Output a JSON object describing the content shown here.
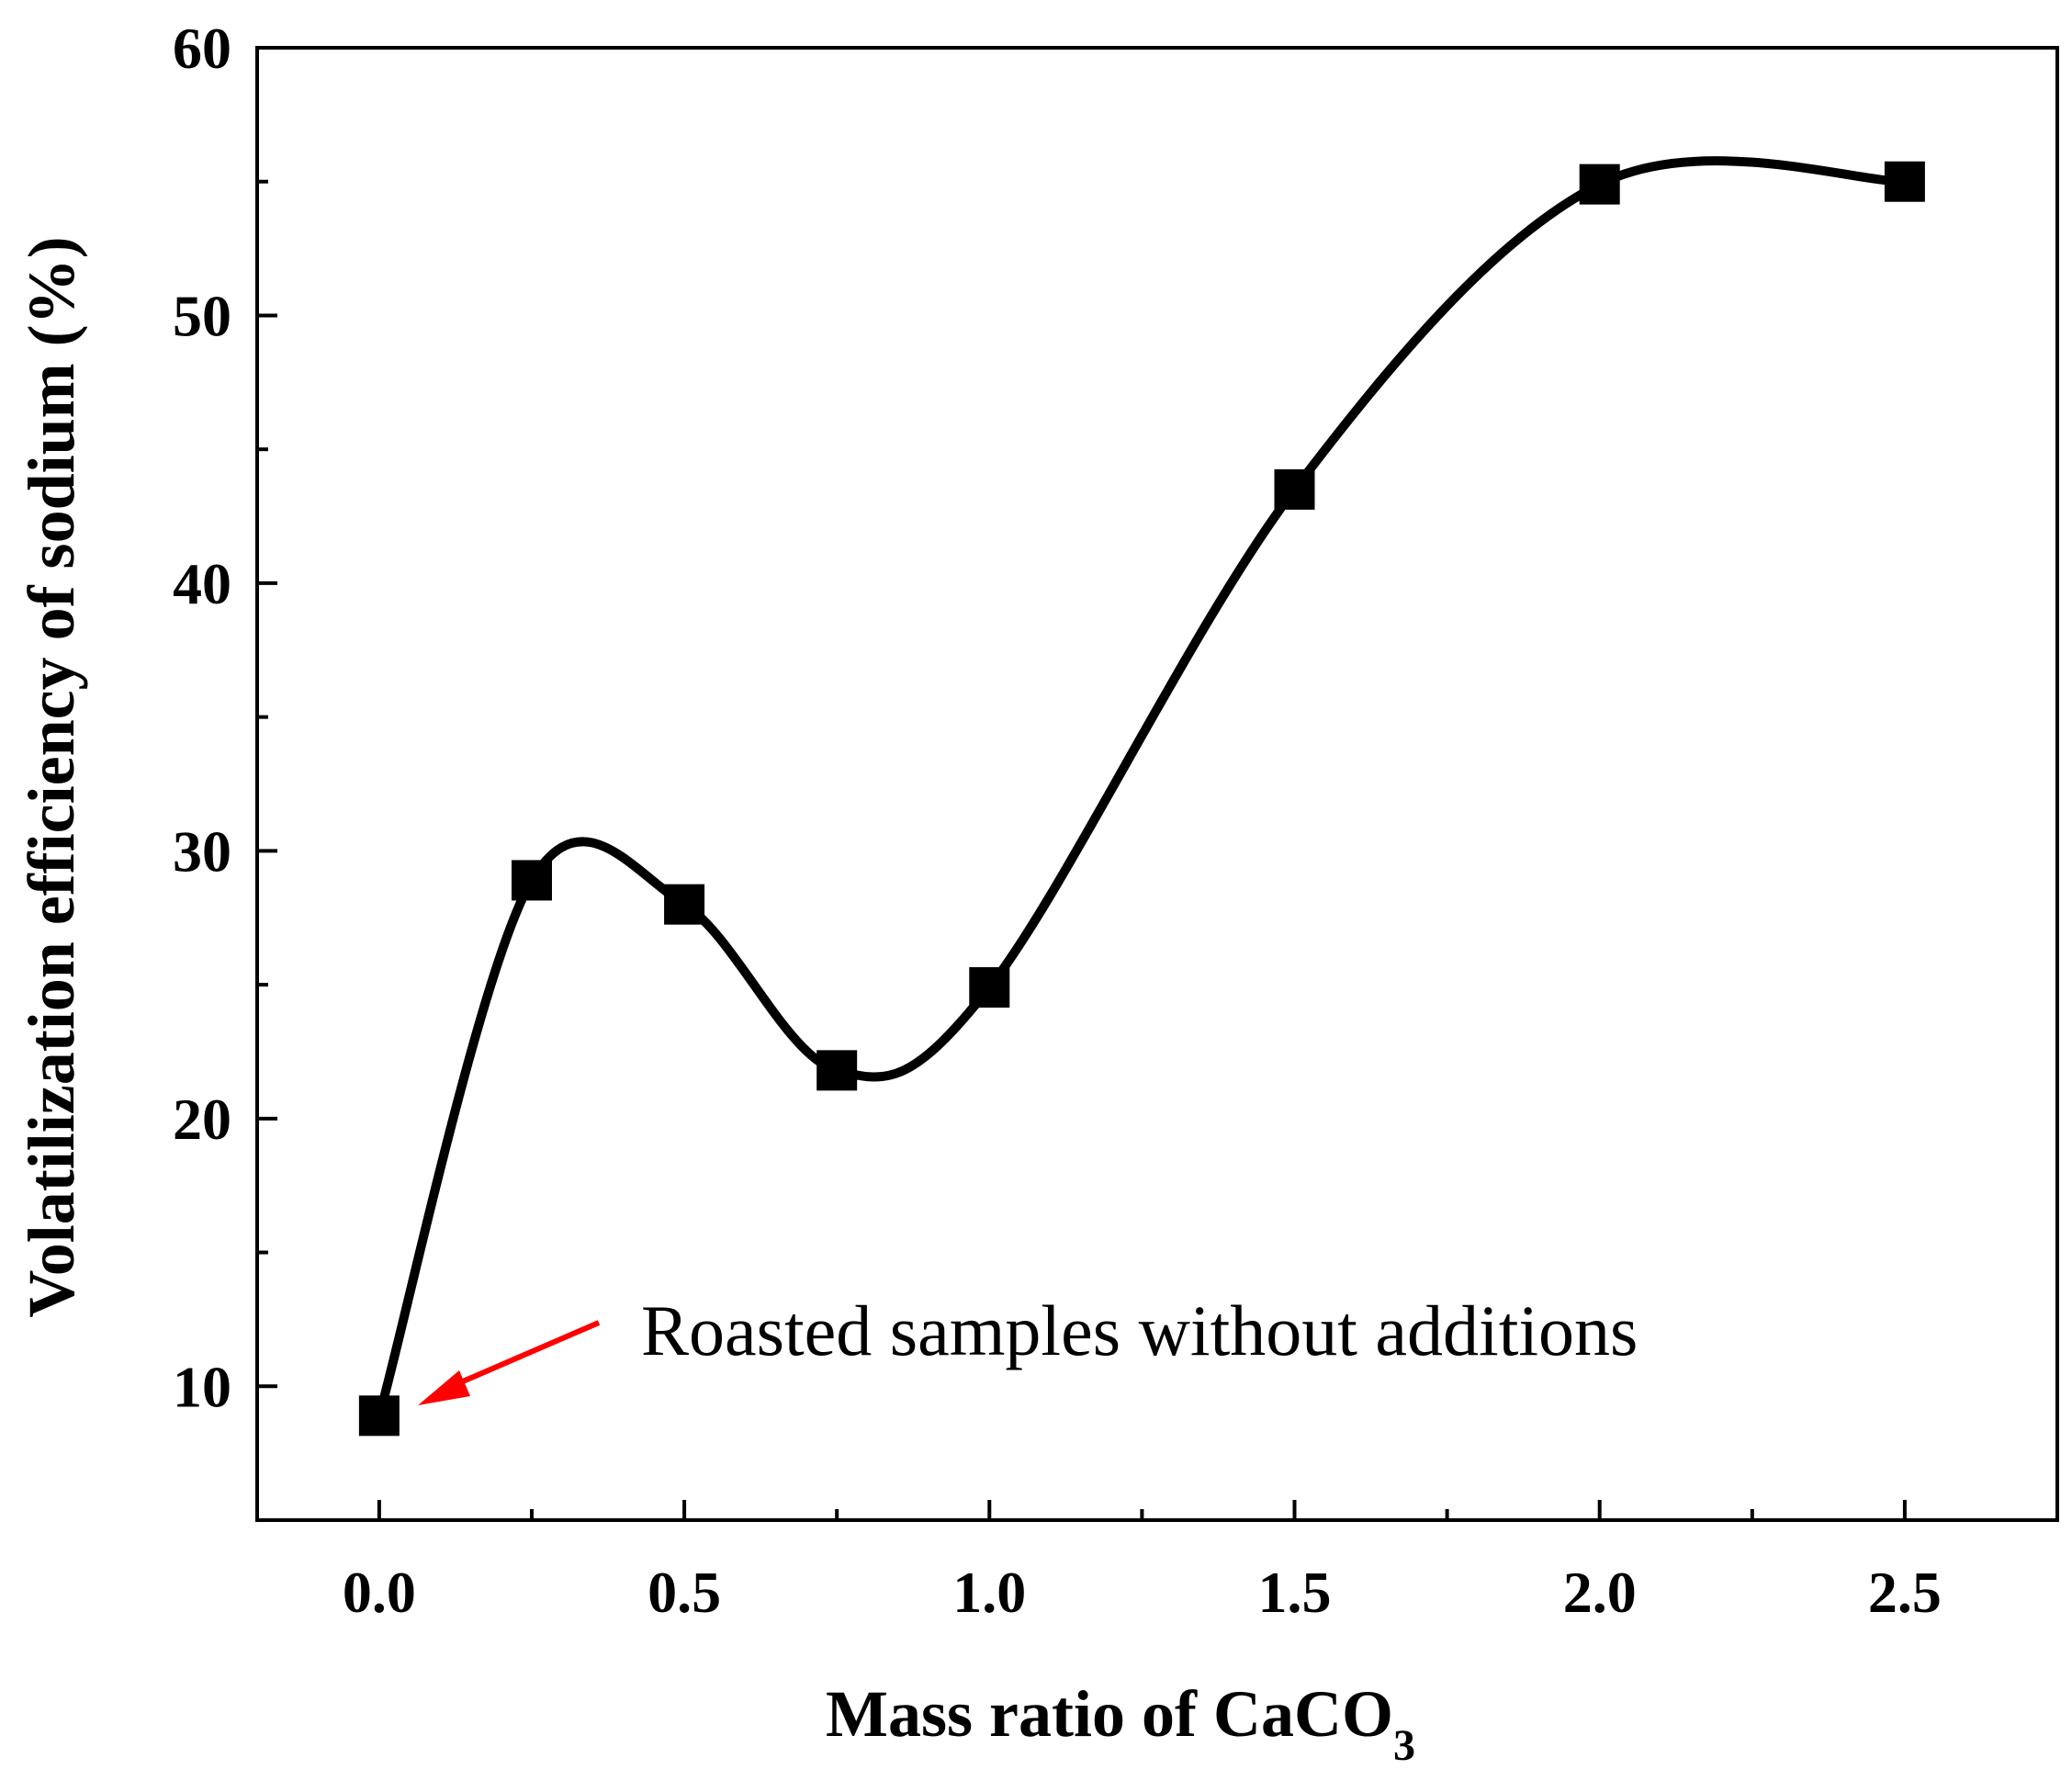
{
  "chart_data": {
    "type": "line",
    "title": "",
    "xlabel": "Mass ratio of CaCO",
    "xlabel_subscript": "3",
    "ylabel": "Volatilization efficiency of sodium (%)",
    "xlim": [
      -0.2,
      2.75
    ],
    "ylim": [
      5,
      60
    ],
    "xticks": [
      0.0,
      0.5,
      1.0,
      1.5,
      2.0,
      2.5
    ],
    "xtick_labels": [
      "0.0",
      "0.5",
      "1.0",
      "1.5",
      "2.0",
      "2.5"
    ],
    "xminor_ticks": [
      0.25,
      0.75,
      1.25,
      1.75,
      2.25
    ],
    "yticks": [
      10,
      20,
      30,
      40,
      50,
      60
    ],
    "ytick_labels": [
      "10",
      "20",
      "30",
      "40",
      "50",
      "60"
    ],
    "yminor_ticks": [
      15,
      25,
      35,
      45,
      55
    ],
    "grid": false,
    "series": [
      {
        "name": "Volatilization efficiency",
        "marker": "square",
        "smooth": true,
        "color": "#000000",
        "x": [
          0.0,
          0.25,
          0.5,
          0.75,
          1.0,
          1.5,
          2.0,
          2.5
        ],
        "y": [
          8.9,
          28.9,
          28.0,
          21.8,
          24.9,
          43.5,
          54.9,
          55.0
        ]
      }
    ],
    "annotations": [
      {
        "text": "Roasted samples without additions",
        "arrow_color": "#ff0000",
        "points_to": {
          "x": 0.0,
          "y": 8.9
        }
      }
    ]
  }
}
